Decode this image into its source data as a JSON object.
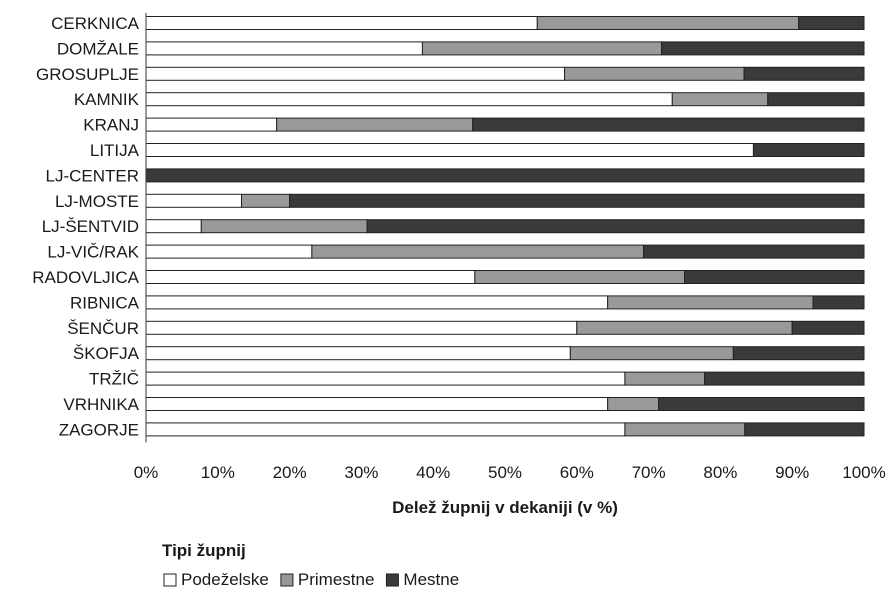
{
  "chart_data": {
    "type": "bar",
    "orientation": "horizontal",
    "stacked": true,
    "percent_stacked": true,
    "categories": [
      "CERKNICA",
      "DOMŽALE",
      "GROSUPLJE",
      "KAMNIK",
      "KRANJ",
      "LITIJA",
      "LJ-CENTER",
      "LJ-MOSTE",
      "LJ-ŠENTVID",
      "LJ-VIČ/RAK",
      "RADOVLJICA",
      "RIBNICA",
      "ŠENČUR",
      "ŠKOFJA",
      "TRŽIČ",
      "VRHNIKA",
      "ZAGORJE"
    ],
    "series": [
      {
        "name": "Podeželske",
        "color": "#ffffff",
        "values": [
          54.5,
          38.5,
          58.3,
          73.3,
          18.2,
          84.6,
          0,
          13.3,
          7.7,
          23.1,
          45.8,
          64.3,
          60.0,
          59.1,
          66.7,
          64.3,
          66.7
        ]
      },
      {
        "name": "Primestne",
        "color": "#999999",
        "values": [
          36.4,
          33.3,
          25.0,
          13.3,
          27.3,
          0,
          0,
          6.7,
          23.1,
          46.2,
          29.2,
          28.6,
          30.0,
          22.7,
          11.1,
          7.1,
          16.7
        ]
      },
      {
        "name": "Mestne",
        "color": "#3a3a3a",
        "values": [
          9.1,
          28.2,
          16.7,
          13.4,
          54.5,
          15.4,
          100,
          80.0,
          69.2,
          30.7,
          25.0,
          7.1,
          10.0,
          18.2,
          22.2,
          28.6,
          16.6
        ]
      }
    ],
    "xticks": [
      "0%",
      "10%",
      "20%",
      "30%",
      "40%",
      "50%",
      "60%",
      "70%",
      "80%",
      "90%",
      "100%"
    ],
    "xlim": [
      0,
      100
    ],
    "xlabel": "Delež župnij v dekaniji (v %)",
    "ylabel": "",
    "grid": false,
    "legend": {
      "title": "Tipi župnij",
      "placement": "bottom-left"
    }
  }
}
